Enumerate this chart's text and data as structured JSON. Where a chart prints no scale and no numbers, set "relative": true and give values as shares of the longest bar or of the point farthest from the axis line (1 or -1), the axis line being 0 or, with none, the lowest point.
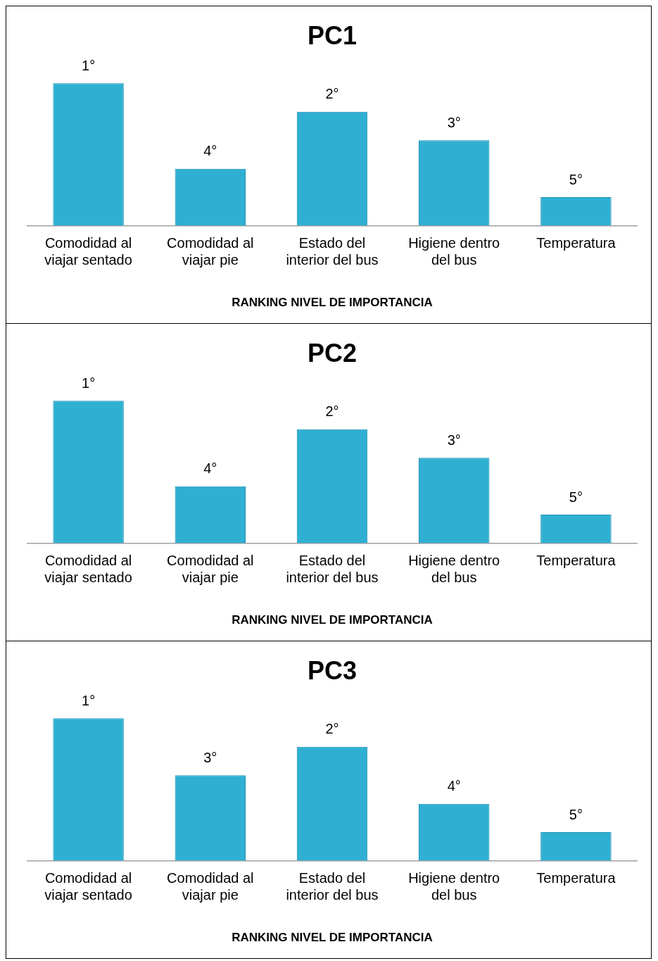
{
  "chart_data": [
    {
      "type": "bar",
      "title": "PC1",
      "xlabel": "RANKING NIVEL DE IMPORTANCIA",
      "categories": [
        "Comodidad al viajar sentado",
        "Comodidad al viajar pie",
        "Estado del interior del bus",
        "Higiene dentro del bus",
        "Temperatura"
      ],
      "relative": true,
      "color": "#2fb0d2",
      "values": [
        1,
        0.4,
        0.8,
        0.6,
        0.2
      ],
      "annotations": [
        {
          "text": "1°",
          "x": "Comodidad al viajar sentado",
          "y": 1
        },
        {
          "text": "4°",
          "x": "Comodidad al viajar pie",
          "y": 0.4
        },
        {
          "text": "2°",
          "x": "Estado del interior del bus",
          "y": 0.8
        },
        {
          "text": "3°",
          "x": "Higiene dentro del bus",
          "y": 0.6
        },
        {
          "text": "5°",
          "x": "Temperatura",
          "y": 0.2
        }
      ],
      "grid": false,
      "legend": false
    },
    {
      "type": "bar",
      "title": "PC2",
      "xlabel": "RANKING NIVEL DE IMPORTANCIA",
      "categories": [
        "Comodidad al viajar sentado",
        "Comodidad al viajar pie",
        "Estado del interior del bus",
        "Higiene dentro del bus",
        "Temperatura"
      ],
      "relative": true,
      "color": "#2fb0d2",
      "values": [
        1,
        0.4,
        0.8,
        0.6,
        0.2
      ],
      "annotations": [
        {
          "text": "1°",
          "x": "Comodidad al viajar sentado",
          "y": 1
        },
        {
          "text": "4°",
          "x": "Comodidad al viajar pie",
          "y": 0.4
        },
        {
          "text": "2°",
          "x": "Estado del interior del bus",
          "y": 0.8
        },
        {
          "text": "3°",
          "x": "Higiene dentro del bus",
          "y": 0.6
        },
        {
          "text": "5°",
          "x": "Temperatura",
          "y": 0.2
        }
      ],
      "grid": false,
      "legend": false
    },
    {
      "type": "bar",
      "title": "PC3",
      "xlabel": "RANKING NIVEL DE IMPORTANCIA",
      "categories": [
        "Comodidad al viajar sentado",
        "Comodidad al viajar pie",
        "Estado del interior del bus",
        "Higiene dentro del bus",
        "Temperatura"
      ],
      "relative": true,
      "color": "#2fb0d2",
      "values": [
        1,
        0.6,
        0.8,
        0.4,
        0.2
      ],
      "annotations": [
        {
          "text": "1°",
          "x": "Comodidad al viajar sentado",
          "y": 1
        },
        {
          "text": "3°",
          "x": "Comodidad al viajar pie",
          "y": 0.6
        },
        {
          "text": "2°",
          "x": "Estado del interior del bus",
          "y": 0.8
        },
        {
          "text": "4°",
          "x": "Higiene dentro del bus",
          "y": 0.4
        },
        {
          "text": "5°",
          "x": "Temperatura",
          "y": 0.2
        }
      ],
      "grid": false,
      "legend": false
    }
  ]
}
